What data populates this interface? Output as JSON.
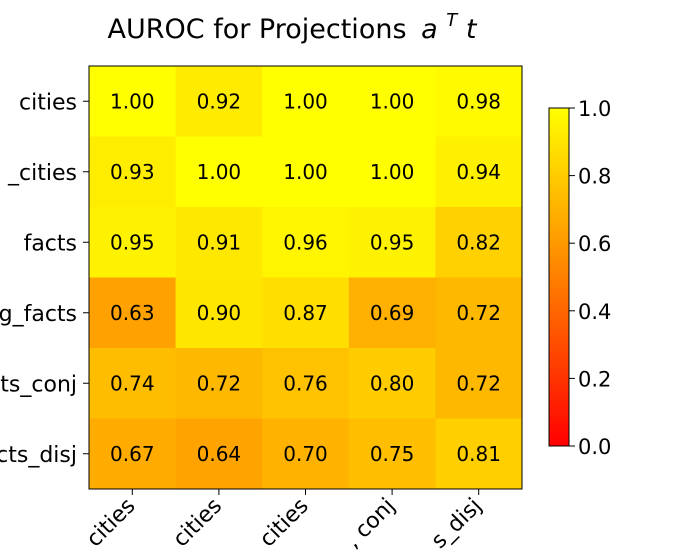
{
  "chart_data": {
    "type": "heatmap",
    "title": "AUROC for Projections",
    "title_math": "a",
    "title_sup": "T",
    "title_tail": "t",
    "x_labels": [
      "cities",
      "neg_cities",
      "larger_than... cities",
      "cities_conj",
      "cities_disj"
    ],
    "x_labels_visible": [
      "cities",
      "cities",
      "cities",
      "conj",
      "disj"
    ],
    "x_labels_visible_prefix": [
      "",
      "",
      "",
      ", ",
      "s_"
    ],
    "y_labels_visible": [
      "cities",
      "_cities",
      "facts",
      "g_facts",
      "ts_conj",
      "cts_disj"
    ],
    "values": [
      [
        1.0,
        0.92,
        1.0,
        1.0,
        0.98
      ],
      [
        0.93,
        1.0,
        1.0,
        1.0,
        0.94
      ],
      [
        0.95,
        0.91,
        0.96,
        0.95,
        0.82
      ],
      [
        0.63,
        0.9,
        0.87,
        0.69,
        0.72
      ],
      [
        0.74,
        0.72,
        0.76,
        0.8,
        0.72
      ],
      [
        0.67,
        0.64,
        0.7,
        0.75,
        0.81
      ]
    ],
    "value_format": "2dp",
    "colormap": "autumn",
    "vmin": 0.0,
    "vmax": 1.0,
    "colorbar_ticks": [
      "0.0",
      "0.2",
      "0.4",
      "0.6",
      "0.8",
      "1.0"
    ],
    "colorbar_tick_values": [
      0.0,
      0.2,
      0.4,
      0.6,
      0.8,
      1.0
    ],
    "grid": false,
    "legend": "colorbar-right",
    "colors": {
      "low": "#ff0000",
      "high": "#ffff00"
    }
  }
}
